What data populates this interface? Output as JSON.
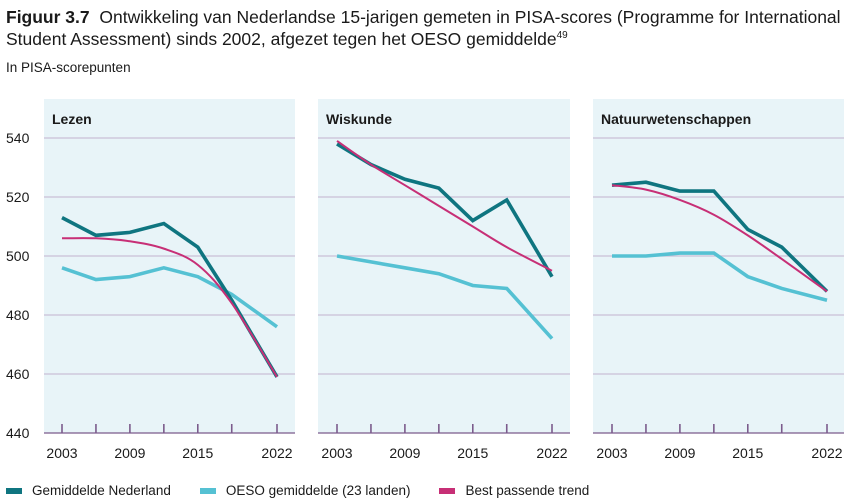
{
  "figure": {
    "label": "Figuur 3.7",
    "title": "Ontwikkeling van Nederlandse 15-jarigen gemeten in PISA-scores (Programme for International Student Assessment) sinds 2002, afgezet tegen het OESO gemiddelde",
    "footnote": "49",
    "unit": "In PISA-scorepunten"
  },
  "colors": {
    "nl": "#0f7580",
    "oecd": "#55c1d3",
    "trend": "#c72f76",
    "panel_bg": "#e8f4f8",
    "grid": "#c9bfd6",
    "tick": "#7b5b8c"
  },
  "legend": [
    {
      "key": "nl",
      "label": "Gemiddelde Nederland"
    },
    {
      "key": "oecd",
      "label": "OESO gemiddelde (23 landen)"
    },
    {
      "key": "trend",
      "label": "Best passende trend"
    }
  ],
  "chart_data": {
    "type": "line",
    "ylim": [
      440,
      550
    ],
    "yticks": [
      440,
      460,
      480,
      500,
      520,
      540
    ],
    "x": [
      2003,
      2006,
      2009,
      2012,
      2015,
      2018,
      2022
    ],
    "xtick_labels": [
      "2003",
      "2009",
      "2015",
      "2022"
    ],
    "grid": true,
    "legend_position": "bottom",
    "panels": [
      {
        "title": "Lezen",
        "series": [
          {
            "name": "Gemiddelde Nederland",
            "key": "nl",
            "values": [
              513,
              507,
              508,
              511,
              503,
              485,
              459
            ]
          },
          {
            "name": "OESO gemiddelde (23 landen)",
            "key": "oecd",
            "values": [
              496,
              492,
              493,
              496,
              493,
              487,
              476
            ]
          },
          {
            "name": "Best passende trend",
            "key": "trend",
            "values": [
              506,
              506,
              505,
              502.5,
              497,
              484,
              459
            ]
          }
        ]
      },
      {
        "title": "Wiskunde",
        "series": [
          {
            "name": "Gemiddelde Nederland",
            "key": "nl",
            "values": [
              538,
              531,
              526,
              523,
              512,
              519,
              493
            ]
          },
          {
            "name": "OESO gemiddelde (23 landen)",
            "key": "oecd",
            "values": [
              500,
              498,
              496,
              494,
              490,
              489,
              472
            ]
          },
          {
            "name": "Best passende trend",
            "key": "trend",
            "values": [
              539,
              531,
              524,
              517,
              510,
              503,
              495
            ]
          }
        ]
      },
      {
        "title": "Natuurwetenschappen",
        "series": [
          {
            "name": "Gemiddelde Nederland",
            "key": "nl",
            "values": [
              524,
              525,
              522,
              522,
              509,
              503,
              488
            ]
          },
          {
            "name": "OESO gemiddelde (23 landen)",
            "key": "oecd",
            "values": [
              500,
              500,
              501,
              501,
              493,
              489,
              485
            ]
          },
          {
            "name": "Best passende trend",
            "key": "trend",
            "values": [
              524,
              522.5,
              519,
              514,
              507,
              499,
              488
            ]
          }
        ]
      }
    ]
  }
}
